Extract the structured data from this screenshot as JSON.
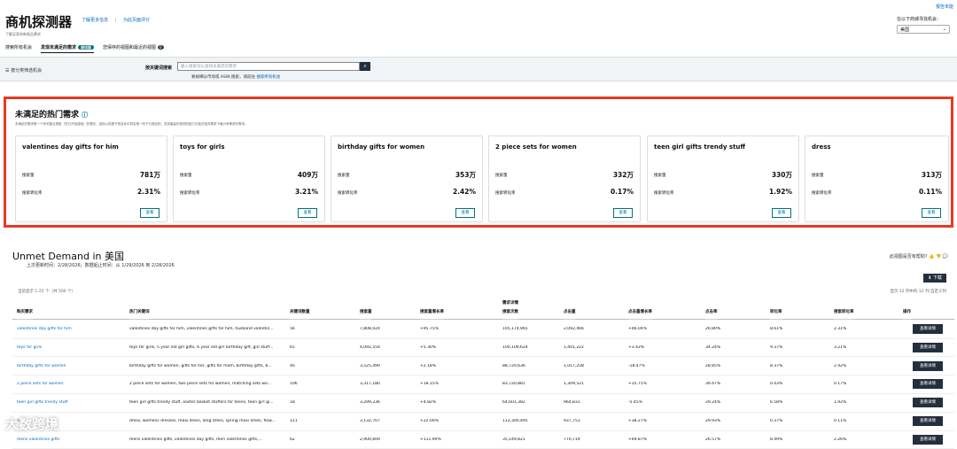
{
  "top_right_link": "报告未能",
  "header": {
    "title": "商机探测器",
    "link1": "了解更多信息",
    "sep": "|",
    "link2": "为此页面评分",
    "subtitle": "了解买家的新商品需求"
  },
  "market": {
    "label": "在以下商城寻找机会：",
    "value": "美国"
  },
  "tabs": [
    {
      "label": "搜索所有机会"
    },
    {
      "label": "发现未满足的需求",
      "badge": "测试版"
    },
    {
      "label": "您保存的视图和最近的视图",
      "count": "0"
    }
  ],
  "searchbar": {
    "left": "按分类筛选机会",
    "label": "按关键词搜索",
    "placeholder": "输入搜索词以查找未满足的需求",
    "note": "要按细分市场或 ASIN 搜索，请前往",
    "note_link": "搜索所有机会"
  },
  "section": {
    "title": "未满足的热门需求",
    "desc": "未满足的需求是一个有关要点提取（您已开始搜索）的理念，选择以查看子类目标中排名第一的子分类品别，查找最高的相同的能力可能在相关需求下最为有需求的需求。"
  },
  "cards": [
    {
      "kw": "valentines day gifts for him",
      "vol": "781万",
      "conv": "2.31%"
    },
    {
      "kw": "toys for girls",
      "vol": "409万",
      "conv": "3.21%"
    },
    {
      "kw": "birthday gifts for women",
      "vol": "353万",
      "conv": "2.42%"
    },
    {
      "kw": "2 piece sets for women",
      "vol": "332万",
      "conv": "0.17%"
    },
    {
      "kw": "teen girl gifts trendy stuff",
      "vol": "330万",
      "conv": "1.92%"
    },
    {
      "kw": "dress",
      "vol": "313万",
      "conv": "0.11%"
    }
  ],
  "card_labels": {
    "vol": "搜索量",
    "conv": "搜索转化率",
    "view": "查看"
  },
  "ud": {
    "title": "Unmet Demand in 美国",
    "meta": "上次更新时间：2/28/2026；数据起止时间：从 1/29/2026 到 2/28/2026",
    "feedback": "此视图是否有帮助?",
    "download": "下载",
    "rows_info": "当前显示 1-25 个（共 500 个）",
    "rows_right": "显示 12 列中的 12 列  自定义列"
  },
  "columns": [
    "购买需求",
    "热门关键词",
    "关键词数量",
    "搜索量",
    "搜索量增长率",
    "搜索次数",
    "点击量",
    "点击量增长率",
    "点击率",
    "转化率",
    "搜索转化率",
    "操作"
  ],
  "col_group": "需求详情",
  "rows": [
    [
      "valentines day gifts for him",
      "valentines day gifts for him, valentines gifts for him, husband valentin...",
      "56",
      "7,808,024",
      "+95.75%",
      "105,174,965",
      "2,092,466",
      "+46.04%",
      "26.80%",
      "8.61%",
      "2.31%"
    ],
    [
      "toys for girls",
      "toys for girls, 5 year old girl gifts, 6 year old girl birthday gift, girl stuff...",
      "65",
      "4,092,554",
      "+5.30%",
      "100,109,624",
      "1,401,222",
      "+3.43%",
      "34.24%",
      "9.37%",
      "3.21%"
    ],
    [
      "birthday gifts for women",
      "birthday gifts for women, gifts for her, gifts for mom, birthday gifts, b...",
      "46",
      "3,525,499",
      "+2.18%",
      "88,720,636",
      "1,017,258",
      "-18.47%",
      "28.85%",
      "8.37%",
      "2.42%"
    ],
    [
      "2 piece sets for women",
      "2 piece sets for women, two piece sets for women, matching sets wo...",
      "106",
      "3,317,180",
      "+18.15%",
      "83,720,881",
      "1,309,521",
      "+35.75%",
      "39.47%",
      "0.43%",
      "0.17%"
    ],
    [
      "teen girl gifts trendy stuff",
      "teen girl gifts trendy stuff, easter basket stuffers for teens, teen girl gi...",
      "18",
      "3,299,236",
      "+4.82%",
      "64,601,382",
      "964,831",
      "-5.45%",
      "29.24%",
      "6.58%",
      "1.92%"
    ],
    [
      "dress",
      "dress, womens dresses, maxi dress, long dress, spring maxi dress, flow...",
      "121",
      "3,132,707",
      "+22.00%",
      "112,300,495",
      "937,753",
      "+38.27%",
      "29.93%",
      "0.37%",
      "0.11%"
    ],
    [
      "mens valentines gifts",
      "mens valentines gifts, valentines day gifts, men valentines gifts,...",
      "62",
      "2,900,609",
      "+111.90%",
      "35,149,821",
      "770,719",
      "+69.87%",
      "26.57%",
      "8.49%",
      "2.26%"
    ]
  ],
  "op_label": "查看详情",
  "watermark": "大数跨境"
}
